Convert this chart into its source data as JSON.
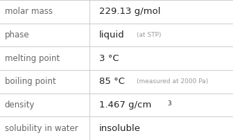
{
  "rows": [
    {
      "label": "molar mass",
      "value": "229.13 g/mol",
      "note": null,
      "superscript": null
    },
    {
      "label": "phase",
      "value": "liquid",
      "note": "(at STP)",
      "superscript": null
    },
    {
      "label": "melting point",
      "value": "3 °C",
      "note": null,
      "superscript": null
    },
    {
      "label": "boiling point",
      "value": "85 °C",
      "note": "(measured at 2000 Pa)",
      "superscript": null
    },
    {
      "label": "density",
      "value": "1.467 g/cm",
      "note": null,
      "superscript": "3"
    },
    {
      "label": "solubility in water",
      "value": "insoluble",
      "note": null,
      "superscript": null
    }
  ],
  "col_split": 0.385,
  "background_color": "#ffffff",
  "grid_color": "#cccccc",
  "label_color": "#666666",
  "value_color": "#222222",
  "note_color": "#999999",
  "label_fontsize": 8.5,
  "value_fontsize": 9.5,
  "note_fontsize": 6.5,
  "sup_fontsize": 6.5
}
